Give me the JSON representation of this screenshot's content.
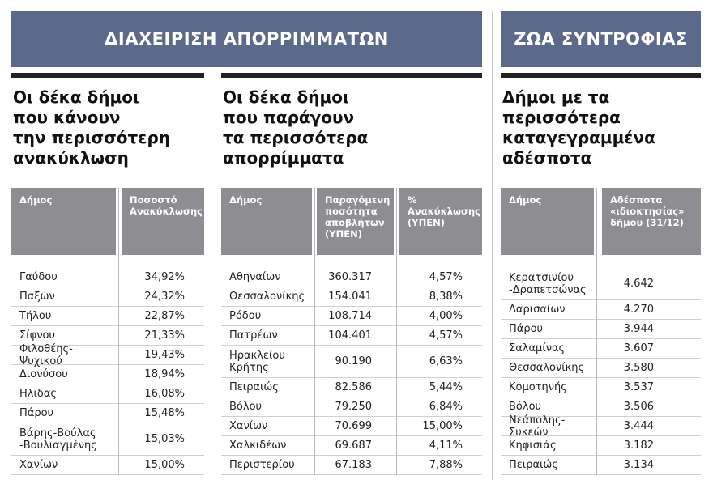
{
  "sections": [
    {
      "banner": "ΔΙΑΧΕΙΡΙΣΗ ΑΠΟΡΡΙΜΜΑΤΩΝ",
      "panels": [
        {
          "title": [
            "Οι δέκα δήμοι",
            "που κάνουν",
            "την περισσότερη",
            "ανακύκλωση"
          ],
          "table": {
            "columns": [
              "Δήμος",
              "Ποσοστό Ανακύκλωσης"
            ],
            "rows": [
              [
                "Γαύδου",
                "34,92%"
              ],
              [
                "Παξών",
                "24,32%"
              ],
              [
                "Τήλου",
                "22,87%"
              ],
              [
                "Σίφνου",
                "21,33%"
              ],
              [
                "Φιλοθέης-Ψυχικού",
                "19,43%"
              ],
              [
                "Διονύσου",
                "18,94%"
              ],
              [
                "Ηλιδας",
                "16,08%"
              ],
              [
                "Πάρου",
                "15,48%"
              ],
              [
                "Βάρης-Βούλας\n-Βουλιαγμένης",
                "15,03%"
              ],
              [
                "Χανίων",
                "15,00%"
              ]
            ]
          }
        },
        {
          "title": [
            "Οι δέκα δήμοι",
            "που παράγουν",
            "τα περισσότερα",
            "απορρίμματα"
          ],
          "table": {
            "columns": [
              "Δήμος",
              "Παραγόμενη ποσότητα αποβλήτων (ΥΠΕΝ)",
              "% Ανακύκλωσης (ΥΠΕΝ)"
            ],
            "rows": [
              [
                "Αθηναίων",
                "360.317",
                "4,57%"
              ],
              [
                "Θεσσαλονίκης",
                "154.041",
                "8,38%"
              ],
              [
                "Ρόδου",
                "108.714",
                "4,00%"
              ],
              [
                "Πατρέων",
                "104.401",
                "4,57%"
              ],
              [
                "Ηρακλείου\nΚρήτης",
                "90.190",
                "6,63%"
              ],
              [
                "Πειραιώς",
                "82.586",
                "5,44%"
              ],
              [
                "Βόλου",
                "79.250",
                "6,84%"
              ],
              [
                "Χανίων",
                "70.699",
                "15,00%"
              ],
              [
                "Χαλκιδέων",
                "69.687",
                "4,11%"
              ],
              [
                "Περιστερίου",
                "67.183",
                "7,88%"
              ]
            ]
          }
        }
      ]
    },
    {
      "banner": "ΖΩΑ ΣΥΝΤΡΟΦΙΑΣ",
      "panels": [
        {
          "title": [
            "Δήμοι με τα",
            "περισσότερα",
            "καταγεγραμμένα",
            "αδέσποτα"
          ],
          "table": {
            "columns": [
              "Δήμος",
              "Αδέσποτα «ιδιοκτησίας» δήμου (31/12)"
            ],
            "rows": [
              [
                "Κερατσινίου\n-Δραπετσώνας",
                "4.642"
              ],
              [
                "Λαρισαίων",
                "4.270"
              ],
              [
                "Πάρου",
                "3.944"
              ],
              [
                "Σαλαμίνας",
                "3.607"
              ],
              [
                "Θεσσαλονίκης",
                "3.580"
              ],
              [
                "Κομοτηνής",
                "3.537"
              ],
              [
                "Βόλου",
                "3.506"
              ],
              [
                "Νεάπολης-Συκεών",
                "3.444"
              ],
              [
                "Κηφισιάς",
                "3.182"
              ],
              [
                "Πειραιώς",
                "3.134"
              ]
            ]
          }
        }
      ]
    }
  ]
}
